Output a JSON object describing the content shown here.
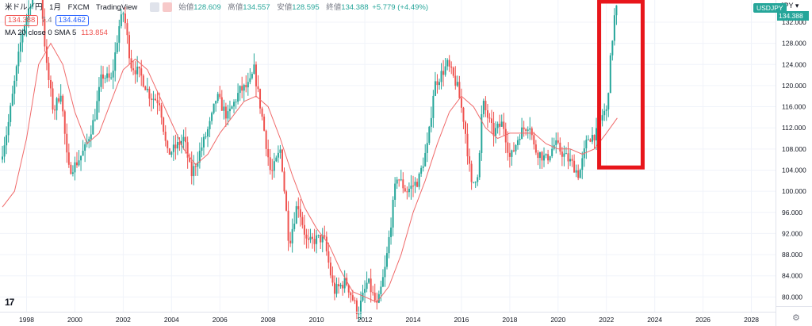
{
  "header": {
    "symbol_name": "米ドル／円",
    "interval": "1月",
    "exchange": "FXCM",
    "source": "TradingView",
    "ohlc": [
      {
        "label": "始値",
        "value": "128.609"
      },
      {
        "label": "高値",
        "value": "134.557"
      },
      {
        "label": "安値",
        "value": "128.595"
      },
      {
        "label": "終値",
        "value": "134.388"
      }
    ],
    "change": "+5.779 (+4.49%)",
    "sell_price": "134.388",
    "spread": "7.4",
    "buy_price": "134.462",
    "ma_label": "MA 20 close 0 SMA 5",
    "ma_value": "113.854"
  },
  "axis": {
    "currency": "JPY",
    "symbol_tag": "USDJPY",
    "last_price": "134.388"
  },
  "logo_text": "17",
  "colors": {
    "up": "#26a69a",
    "down": "#ef5350",
    "ma": "#f06a6a",
    "highlight": "#e8161b",
    "grid": "#f0f3fa"
  },
  "chart_data": {
    "type": "candlestick",
    "title": "",
    "x_range": [
      1996.9,
      2029.0
    ],
    "y_range": [
      77.2,
      136.2
    ],
    "x_ticks": [
      "1998",
      "2000",
      "2002",
      "2004",
      "2006",
      "2008",
      "2010",
      "2012",
      "2014",
      "2016",
      "2018",
      "2020",
      "2022",
      "2024",
      "2026",
      "2028"
    ],
    "y_ticks": [
      "80.000",
      "84.000",
      "88.000",
      "92.000",
      "96.000",
      "100.000",
      "104.000",
      "108.000",
      "112.000",
      "116.000",
      "120.000",
      "124.000",
      "128.000",
      "132.000"
    ],
    "price_path": [
      [
        1997.0,
        106
      ],
      [
        1997.3,
        112
      ],
      [
        1997.6,
        121
      ],
      [
        1997.9,
        130
      ],
      [
        1998.2,
        135
      ],
      [
        1998.6,
        142
      ],
      [
        1998.9,
        124
      ],
      [
        1999.2,
        115
      ],
      [
        1999.5,
        119
      ],
      [
        1999.8,
        104
      ],
      [
        2000.1,
        105
      ],
      [
        2000.5,
        108
      ],
      [
        2000.9,
        114
      ],
      [
        2001.2,
        122
      ],
      [
        2001.6,
        121
      ],
      [
        2001.9,
        131
      ],
      [
        2002.1,
        134
      ],
      [
        2002.4,
        124
      ],
      [
        2002.8,
        122
      ],
      [
        2003.2,
        118
      ],
      [
        2003.6,
        117
      ],
      [
        2003.9,
        107
      ],
      [
        2004.2,
        108
      ],
      [
        2004.6,
        110
      ],
      [
        2004.9,
        103
      ],
      [
        2005.3,
        108
      ],
      [
        2005.7,
        113
      ],
      [
        2005.95,
        118
      ],
      [
        2006.4,
        114
      ],
      [
        2006.9,
        119
      ],
      [
        2007.3,
        120
      ],
      [
        2007.5,
        123
      ],
      [
        2007.8,
        115
      ],
      [
        2008.2,
        103
      ],
      [
        2008.6,
        108
      ],
      [
        2008.95,
        90
      ],
      [
        2009.3,
        98
      ],
      [
        2009.7,
        90
      ],
      [
        2010.1,
        91
      ],
      [
        2010.4,
        91
      ],
      [
        2010.8,
        81
      ],
      [
        2011.3,
        83
      ],
      [
        2011.8,
        77
      ],
      [
        2012.2,
        83
      ],
      [
        2012.6,
        78
      ],
      [
        2012.95,
        86
      ],
      [
        2013.4,
        103
      ],
      [
        2013.8,
        100
      ],
      [
        2014.3,
        102
      ],
      [
        2014.7,
        109
      ],
      [
        2014.95,
        120
      ],
      [
        2015.5,
        124
      ],
      [
        2015.9,
        120
      ],
      [
        2016.2,
        113
      ],
      [
        2016.5,
        101
      ],
      [
        2016.8,
        104
      ],
      [
        2016.95,
        117
      ],
      [
        2017.4,
        111
      ],
      [
        2017.8,
        113
      ],
      [
        2018.1,
        106
      ],
      [
        2018.5,
        111
      ],
      [
        2018.9,
        113
      ],
      [
        2019.1,
        108
      ],
      [
        2019.6,
        106
      ],
      [
        2019.95,
        109
      ],
      [
        2020.3,
        107
      ],
      [
        2020.7,
        105
      ],
      [
        2020.95,
        103
      ],
      [
        2021.3,
        110
      ],
      [
        2021.7,
        111
      ],
      [
        2021.95,
        115
      ],
      [
        2022.1,
        115
      ],
      [
        2022.2,
        122
      ],
      [
        2022.35,
        130
      ],
      [
        2022.45,
        134.4
      ]
    ],
    "ma_line": [
      [
        1997.0,
        97
      ],
      [
        1997.5,
        100
      ],
      [
        1998.0,
        110
      ],
      [
        1998.5,
        124
      ],
      [
        1999.0,
        128
      ],
      [
        1999.5,
        124
      ],
      [
        2000.0,
        115
      ],
      [
        2000.5,
        109
      ],
      [
        2001.0,
        111
      ],
      [
        2001.5,
        117
      ],
      [
        2002.0,
        123
      ],
      [
        2002.5,
        125
      ],
      [
        2003.0,
        123
      ],
      [
        2003.5,
        118
      ],
      [
        2004.0,
        113
      ],
      [
        2004.5,
        108
      ],
      [
        2005.0,
        105
      ],
      [
        2005.5,
        107
      ],
      [
        2006.0,
        111
      ],
      [
        2006.5,
        114
      ],
      [
        2007.0,
        117
      ],
      [
        2007.5,
        118
      ],
      [
        2008.0,
        116
      ],
      [
        2008.5,
        110
      ],
      [
        2009.0,
        103
      ],
      [
        2009.5,
        97
      ],
      [
        2010.0,
        93
      ],
      [
        2010.5,
        90
      ],
      [
        2011.0,
        85
      ],
      [
        2011.5,
        81
      ],
      [
        2012.0,
        80
      ],
      [
        2012.5,
        79
      ],
      [
        2013.0,
        82
      ],
      [
        2013.5,
        88
      ],
      [
        2014.0,
        96
      ],
      [
        2014.5,
        102
      ],
      [
        2015.0,
        109
      ],
      [
        2015.5,
        115
      ],
      [
        2016.0,
        118
      ],
      [
        2016.5,
        116
      ],
      [
        2017.0,
        112
      ],
      [
        2017.5,
        110
      ],
      [
        2018.0,
        111
      ],
      [
        2018.5,
        111
      ],
      [
        2019.0,
        111
      ],
      [
        2019.5,
        109
      ],
      [
        2020.0,
        108
      ],
      [
        2020.5,
        108
      ],
      [
        2021.0,
        107
      ],
      [
        2021.5,
        108
      ],
      [
        2022.0,
        111
      ],
      [
        2022.45,
        113.854
      ]
    ],
    "highlight_box": {
      "x": [
        2021.7,
        2023.5
      ],
      "y": [
        104.5,
        136.2
      ]
    }
  }
}
